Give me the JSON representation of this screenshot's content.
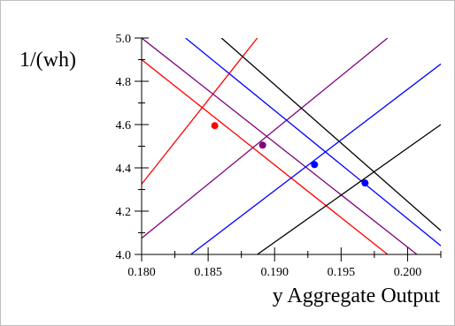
{
  "chart_data": {
    "type": "line",
    "title": "",
    "xlabel": "y Aggregate Output",
    "ylabel": "1/(wh)",
    "xlim": [
      0.18,
      0.2025
    ],
    "ylim": [
      4.0,
      5.0
    ],
    "xticks": [
      0.18,
      0.185,
      0.19,
      0.195,
      0.2
    ],
    "xtick_labels": [
      "0.180",
      "0.185",
      "0.190",
      "0.195",
      "0.200"
    ],
    "yticks": [
      4.0,
      4.2,
      4.4,
      4.6,
      4.8,
      5.0
    ],
    "ytick_labels": [
      "4.0",
      "4.2",
      "4.4",
      "4.6",
      "4.8",
      "5.0"
    ],
    "grid": false,
    "legend": "none",
    "series": [
      {
        "color": "#ff0000",
        "x": [
          0.18,
          0.1887
        ],
        "y": [
          4.325,
          5.0
        ]
      },
      {
        "color": "#ff0000",
        "x": [
          0.18,
          0.1985
        ],
        "y": [
          4.9,
          4.0
        ]
      },
      {
        "color": "#800080",
        "x": [
          0.18,
          0.1985
        ],
        "y": [
          4.075,
          5.0
        ]
      },
      {
        "color": "#800080",
        "x": [
          0.18,
          0.2007
        ],
        "y": [
          5.0,
          4.0
        ]
      },
      {
        "color": "#0000ff",
        "x": [
          0.1837,
          0.2025
        ],
        "y": [
          4.0,
          4.88
        ]
      },
      {
        "color": "#0000ff",
        "x": [
          0.1833,
          0.2025
        ],
        "y": [
          5.0,
          4.04
        ]
      },
      {
        "color": "#000000",
        "x": [
          0.1887,
          0.2025
        ],
        "y": [
          4.0,
          4.6
        ]
      },
      {
        "color": "#000000",
        "x": [
          0.186,
          0.2025
        ],
        "y": [
          5.0,
          4.11
        ]
      }
    ],
    "points": [
      {
        "color": "#ff0000",
        "x": 0.1855,
        "y": 4.595
      },
      {
        "color": "#800080",
        "x": 0.1891,
        "y": 4.505
      },
      {
        "color": "#0000ff",
        "x": 0.193,
        "y": 4.415
      },
      {
        "color": "#0000ff",
        "x": 0.1968,
        "y": 4.33
      }
    ]
  }
}
